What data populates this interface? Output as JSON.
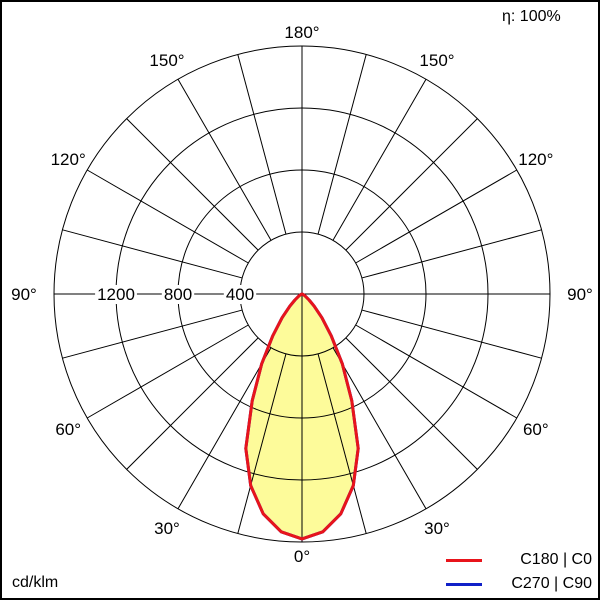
{
  "chart_data": {
    "type": "polar",
    "unit_label": "cd/klm",
    "efficiency_label": "η: 100%",
    "radial_ticks": [
      400,
      800,
      1200
    ],
    "radial_max": 1600,
    "angle_labels": [
      "0°",
      "30°",
      "60°",
      "90°",
      "120°",
      "150°",
      "180°"
    ],
    "angle_label_values": [
      0,
      30,
      60,
      90,
      120,
      150,
      180
    ],
    "grid": true,
    "legend_position": "bottom-right",
    "angles": [
      0,
      5,
      10,
      15,
      20,
      25,
      30,
      35,
      40,
      45,
      50,
      60,
      70,
      80,
      90
    ],
    "series": [
      {
        "name": "C180 | C0",
        "color": "#e8141b",
        "values": [
          1580,
          1540,
          1440,
          1280,
          1060,
          760,
          520,
          330,
          200,
          110,
          60,
          20,
          5,
          0,
          0
        ]
      },
      {
        "name": "C270 | C90",
        "color": "#1020c8",
        "values": [
          1580,
          1540,
          1440,
          1280,
          1060,
          760,
          520,
          330,
          200,
          110,
          60,
          20,
          5,
          0,
          0
        ]
      }
    ],
    "fill_color": "#fdfb9a"
  }
}
